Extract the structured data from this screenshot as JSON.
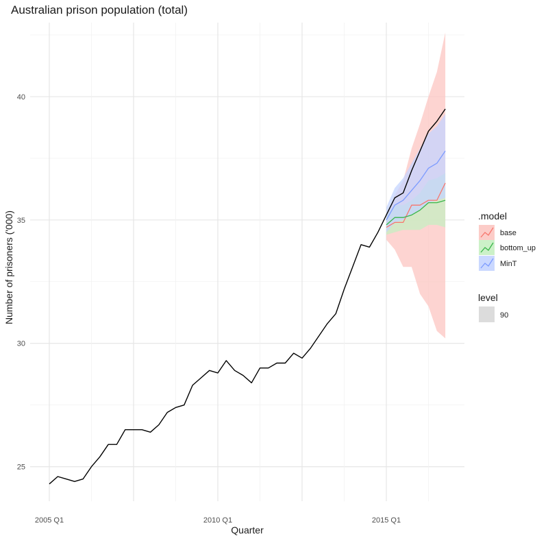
{
  "chart_data": {
    "type": "line",
    "title": "Australian prison population (total)",
    "xlabel": "Quarter",
    "ylabel": "Number of prisoners ('000)",
    "x_ticks": [
      "2005 Q1",
      "2010 Q1",
      "2015 Q1"
    ],
    "y_ticks": [
      25,
      30,
      35,
      40
    ],
    "ylim": [
      23.6,
      43.0
    ],
    "grid": true,
    "legend_position": "right",
    "history": {
      "name": "observed",
      "color": "#000000",
      "x": [
        "2005 Q1",
        "2005 Q2",
        "2005 Q3",
        "2005 Q4",
        "2006 Q1",
        "2006 Q2",
        "2006 Q3",
        "2006 Q4",
        "2007 Q1",
        "2007 Q2",
        "2007 Q3",
        "2007 Q4",
        "2008 Q1",
        "2008 Q2",
        "2008 Q3",
        "2008 Q4",
        "2009 Q1",
        "2009 Q2",
        "2009 Q3",
        "2009 Q4",
        "2010 Q1",
        "2010 Q2",
        "2010 Q3",
        "2010 Q4",
        "2011 Q1",
        "2011 Q2",
        "2011 Q3",
        "2011 Q4",
        "2012 Q1",
        "2012 Q2",
        "2012 Q3",
        "2012 Q4",
        "2013 Q1",
        "2013 Q2",
        "2013 Q3",
        "2013 Q4",
        "2014 Q1",
        "2014 Q2",
        "2014 Q3",
        "2014 Q4",
        "2015 Q1",
        "2015 Q2",
        "2015 Q3",
        "2015 Q4",
        "2016 Q1",
        "2016 Q2",
        "2016 Q3",
        "2016 Q4"
      ],
      "values": [
        24.3,
        24.6,
        24.5,
        24.4,
        24.5,
        25.0,
        25.4,
        25.9,
        25.9,
        26.5,
        26.5,
        26.5,
        26.4,
        26.7,
        27.2,
        27.4,
        27.5,
        28.3,
        28.6,
        28.9,
        28.8,
        29.3,
        28.9,
        28.7,
        28.4,
        29.0,
        29.0,
        29.2,
        29.2,
        29.6,
        29.4,
        29.8,
        30.3,
        30.8,
        31.2,
        32.2,
        33.1,
        34.0,
        33.9,
        34.5,
        35.2,
        35.9,
        36.1,
        37.0,
        37.8,
        38.6,
        39.0,
        39.5
      ]
    },
    "forecast_x": [
      "2015 Q1",
      "2015 Q2",
      "2015 Q3",
      "2015 Q4",
      "2016 Q1",
      "2016 Q2",
      "2016 Q3",
      "2016 Q4"
    ],
    "legend_model_title": ".model",
    "legend_level_title": "level",
    "level_label": "90",
    "level_color": "#dcdcdc",
    "series": [
      {
        "name": "base",
        "color": "#f8766d",
        "fill": "#fcc6c2",
        "values": [
          34.7,
          34.9,
          34.9,
          35.6,
          35.6,
          35.8,
          35.8,
          36.5
        ],
        "lower": [
          34.2,
          33.8,
          33.1,
          33.1,
          32.0,
          31.5,
          30.5,
          30.2
        ],
        "upper": [
          35.2,
          36.0,
          36.6,
          37.9,
          38.9,
          40.0,
          41.0,
          42.6
        ]
      },
      {
        "name": "bottom_up",
        "color": "#39b54a",
        "fill": "#c6efc2",
        "values": [
          34.8,
          35.1,
          35.1,
          35.2,
          35.4,
          35.7,
          35.7,
          35.8
        ],
        "lower": [
          34.4,
          34.5,
          34.6,
          34.6,
          34.6,
          34.8,
          34.8,
          34.7
        ],
        "upper": [
          35.2,
          35.6,
          35.6,
          35.8,
          36.1,
          36.6,
          36.7,
          36.9
        ]
      },
      {
        "name": "MinT",
        "color": "#7c9bff",
        "fill": "#c4d4ff",
        "values": [
          35.0,
          35.6,
          35.8,
          36.2,
          36.6,
          37.1,
          37.3,
          37.8
        ],
        "lower": [
          34.5,
          34.9,
          35.0,
          35.2,
          35.4,
          35.7,
          35.8,
          35.9
        ],
        "upper": [
          35.5,
          36.3,
          36.7,
          37.3,
          37.9,
          38.5,
          38.8,
          39.3
        ]
      }
    ]
  }
}
